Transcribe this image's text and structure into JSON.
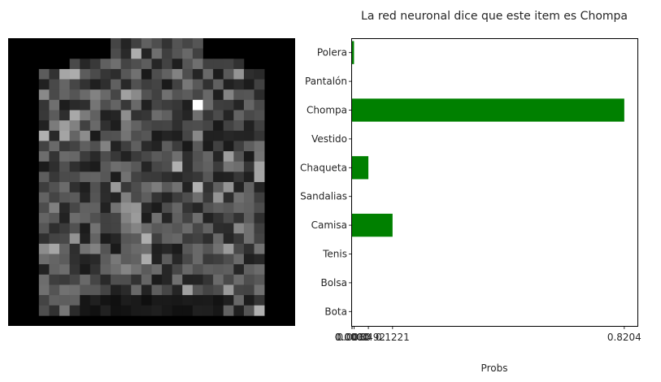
{
  "chart_data": [
    {
      "type": "heatmap",
      "description_visible": "28x28 grayscale image of clothing item",
      "colormap": "gray",
      "grid": false
    },
    {
      "type": "bar",
      "orientation": "horizontal",
      "title": "La red neuronal dice que este item es Chompa",
      "xlabel": "Probs",
      "ylabel": "",
      "categories": [
        "Polera",
        "Pantalón",
        "Chompa",
        "Vestido",
        "Chaqueta",
        "Sandalias",
        "Camisa",
        "Tenis",
        "Bolsa",
        "Bota"
      ],
      "values": [
        0.006,
        0.0,
        0.8204,
        0.0,
        0.0492,
        0.0,
        0.1221,
        0.0,
        0.0,
        0.0
      ],
      "xticks": [
        "0.0000",
        "0.0000",
        "0.0000",
        "0.0000",
        "0.0000",
        "0.0000",
        "0.0060",
        "0.0492",
        "0.1221",
        "0.8204"
      ],
      "xticks_values": [
        0.0,
        0.0,
        0.0,
        0.0,
        0.0,
        0.0,
        0.006,
        0.0492,
        0.1221,
        0.8204
      ],
      "xlim": [
        0,
        0.86
      ],
      "bar_color": "#008000",
      "grid": false
    }
  ]
}
